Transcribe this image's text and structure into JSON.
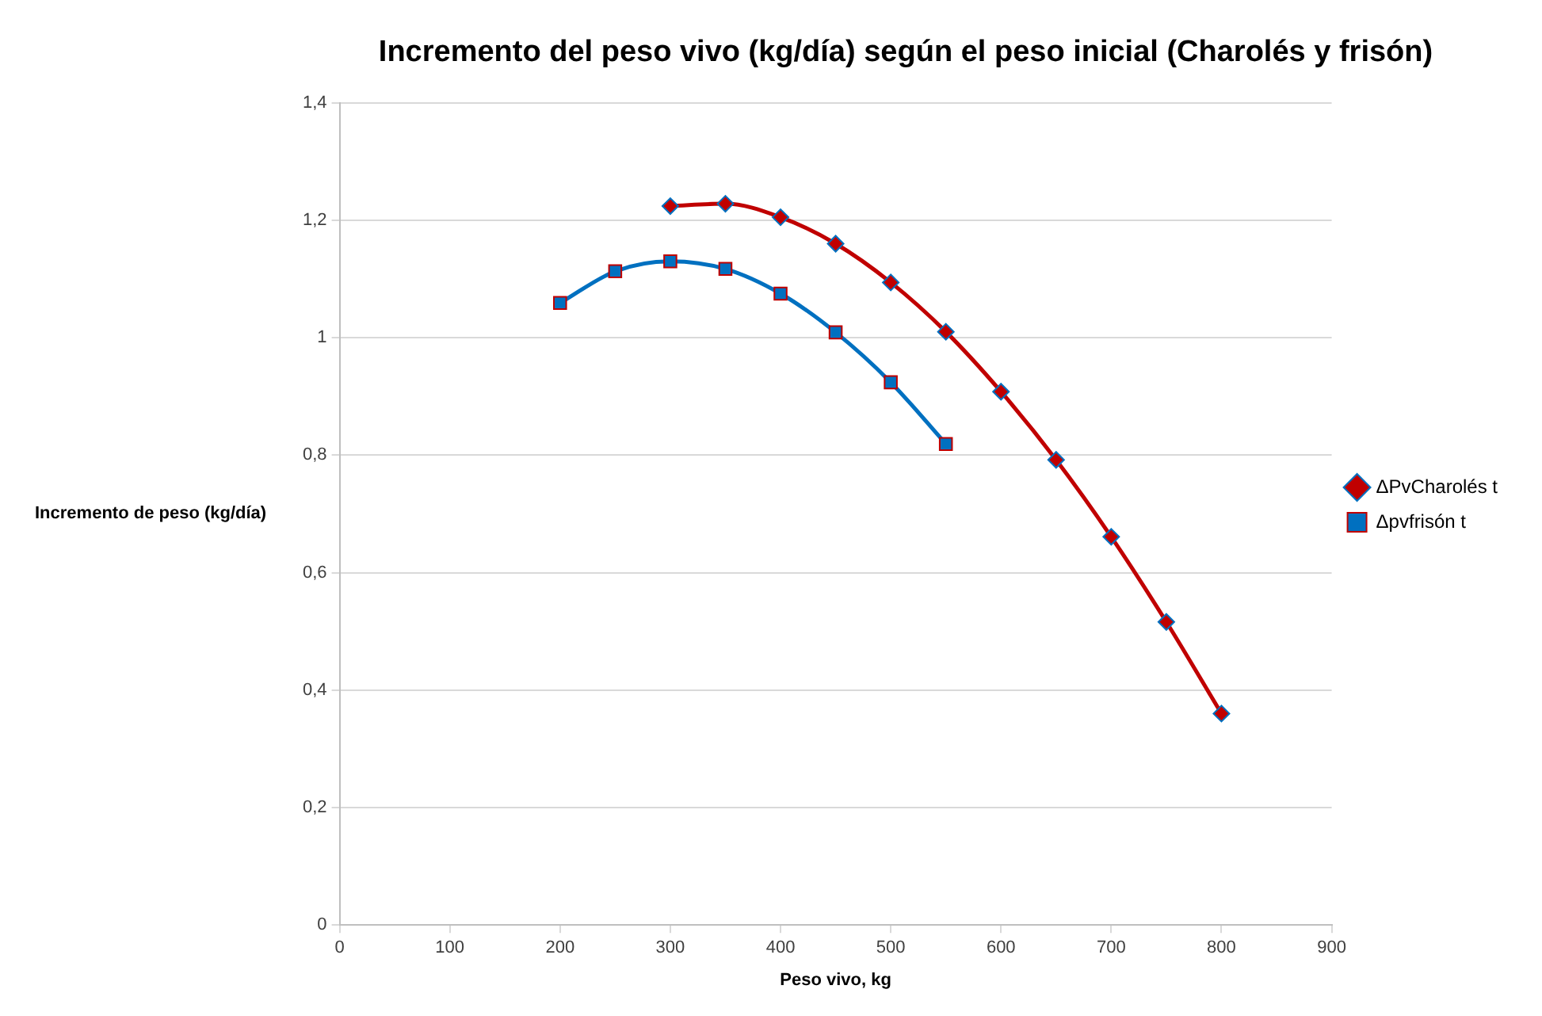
{
  "chart_data": {
    "type": "line",
    "title": "Incremento del peso vivo (kg/día) según el peso inicial (Charolés y frisón)",
    "xlabel": "Peso vivo, kg",
    "ylabel": "Incremento de peso (kg/día)",
    "xlim": [
      0,
      900
    ],
    "xticks": [
      0,
      100,
      200,
      300,
      400,
      500,
      600,
      700,
      800,
      900
    ],
    "ylim": [
      0,
      1.4
    ],
    "yticks": [
      {
        "value": 0,
        "label": "0"
      },
      {
        "value": 0.2,
        "label": "0,2"
      },
      {
        "value": 0.4,
        "label": "0,4"
      },
      {
        "value": 0.6,
        "label": "0,6"
      },
      {
        "value": 0.8,
        "label": "0,8"
      },
      {
        "value": 1,
        "label": "1"
      },
      {
        "value": 1.2,
        "label": "1,2"
      },
      {
        "value": 1.4,
        "label": "1,4"
      }
    ],
    "grid": "y",
    "legend": "right",
    "series": [
      {
        "name": "ΔPvCharolés t",
        "color": "#c00000",
        "marker": "diamond",
        "x": [
          300,
          350,
          400,
          450,
          500,
          550,
          600,
          650,
          700,
          750,
          800
        ],
        "values": [
          1.224,
          1.228,
          1.205,
          1.16,
          1.094,
          1.01,
          0.908,
          0.792,
          0.661,
          0.516,
          0.36
        ]
      },
      {
        "name": "Δpvfrisón t",
        "color": "#0070c0",
        "marker": "square",
        "x": [
          200,
          250,
          300,
          350,
          400,
          450,
          500,
          550
        ],
        "values": [
          1.059,
          1.113,
          1.13,
          1.117,
          1.075,
          1.009,
          0.924,
          0.819
        ]
      }
    ]
  }
}
